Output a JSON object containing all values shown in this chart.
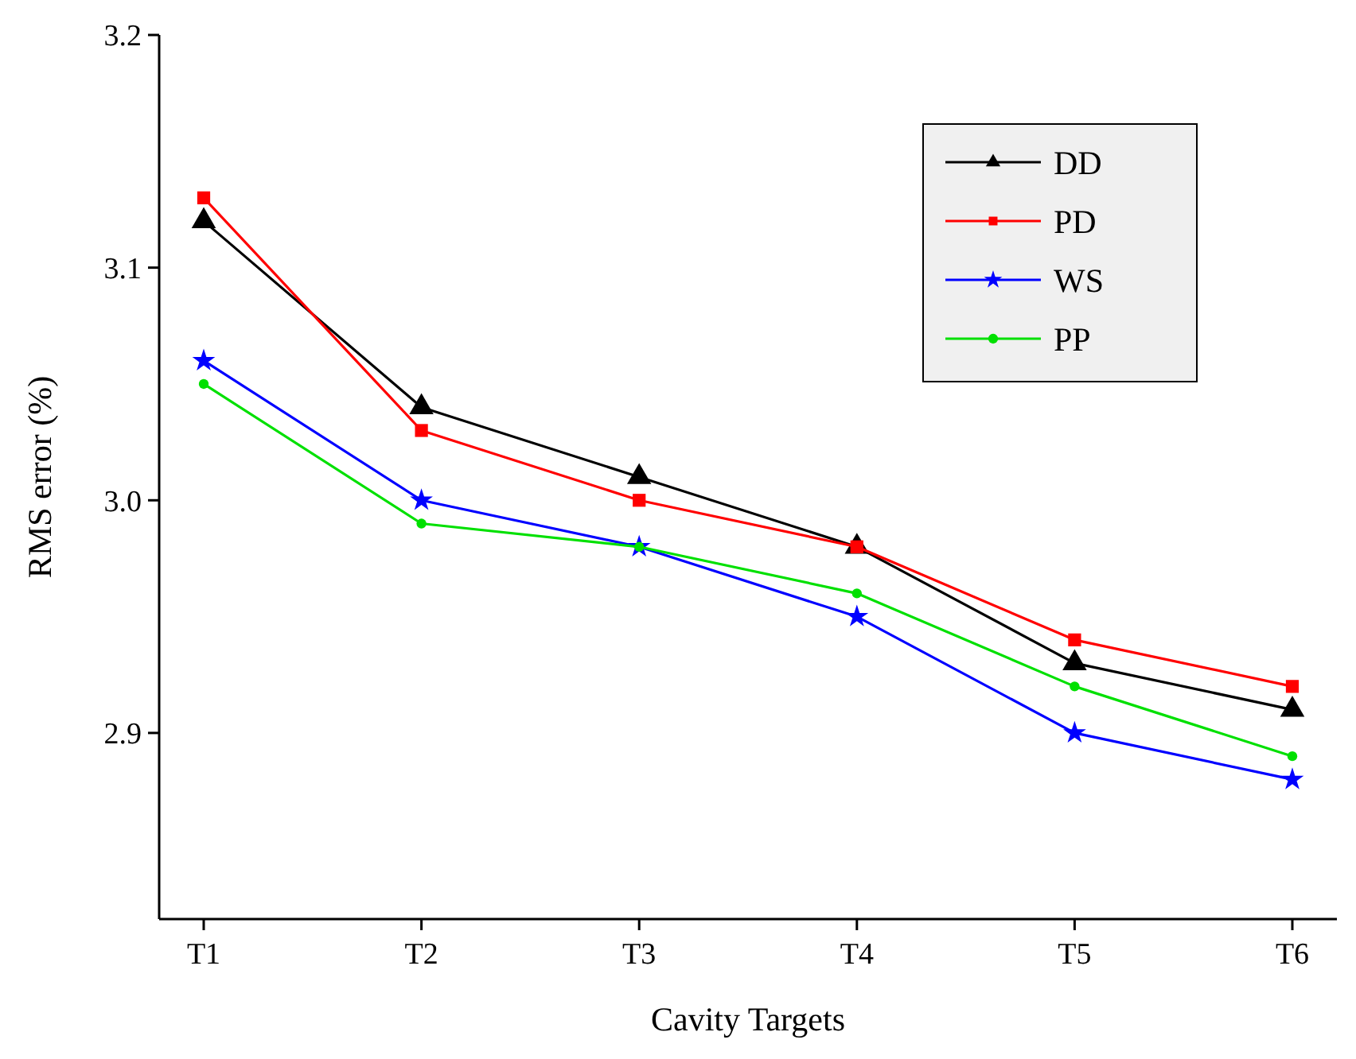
{
  "chart_data": {
    "type": "line",
    "xlabel": "Cavity Targets",
    "ylabel": "RMS error (%)",
    "categories": [
      "T1",
      "T2",
      "T3",
      "T4",
      "T5",
      "T6"
    ],
    "series": [
      {
        "name": "DD",
        "color": "#000000",
        "marker": "triangle",
        "values": [
          3.12,
          3.04,
          3.01,
          2.98,
          2.93,
          2.91
        ]
      },
      {
        "name": "PD",
        "color": "#ff0000",
        "marker": "square",
        "values": [
          3.13,
          3.03,
          3.0,
          2.98,
          2.94,
          2.92
        ]
      },
      {
        "name": "WS",
        "color": "#0000ff",
        "marker": "star",
        "values": [
          3.06,
          3.0,
          2.98,
          2.95,
          2.9,
          2.88
        ]
      },
      {
        "name": "PP",
        "color": "#00e000",
        "marker": "circle",
        "values": [
          3.05,
          2.99,
          2.98,
          2.96,
          2.92,
          2.89
        ]
      }
    ],
    "ylim": [
      2.82,
      3.2
    ],
    "yticks": [
      2.9,
      {
        "value": 3.0,
        "label": "3.0"
      },
      3.1,
      3.2
    ],
    "grid": false,
    "legend": "top right",
    "line_style": "solid"
  }
}
